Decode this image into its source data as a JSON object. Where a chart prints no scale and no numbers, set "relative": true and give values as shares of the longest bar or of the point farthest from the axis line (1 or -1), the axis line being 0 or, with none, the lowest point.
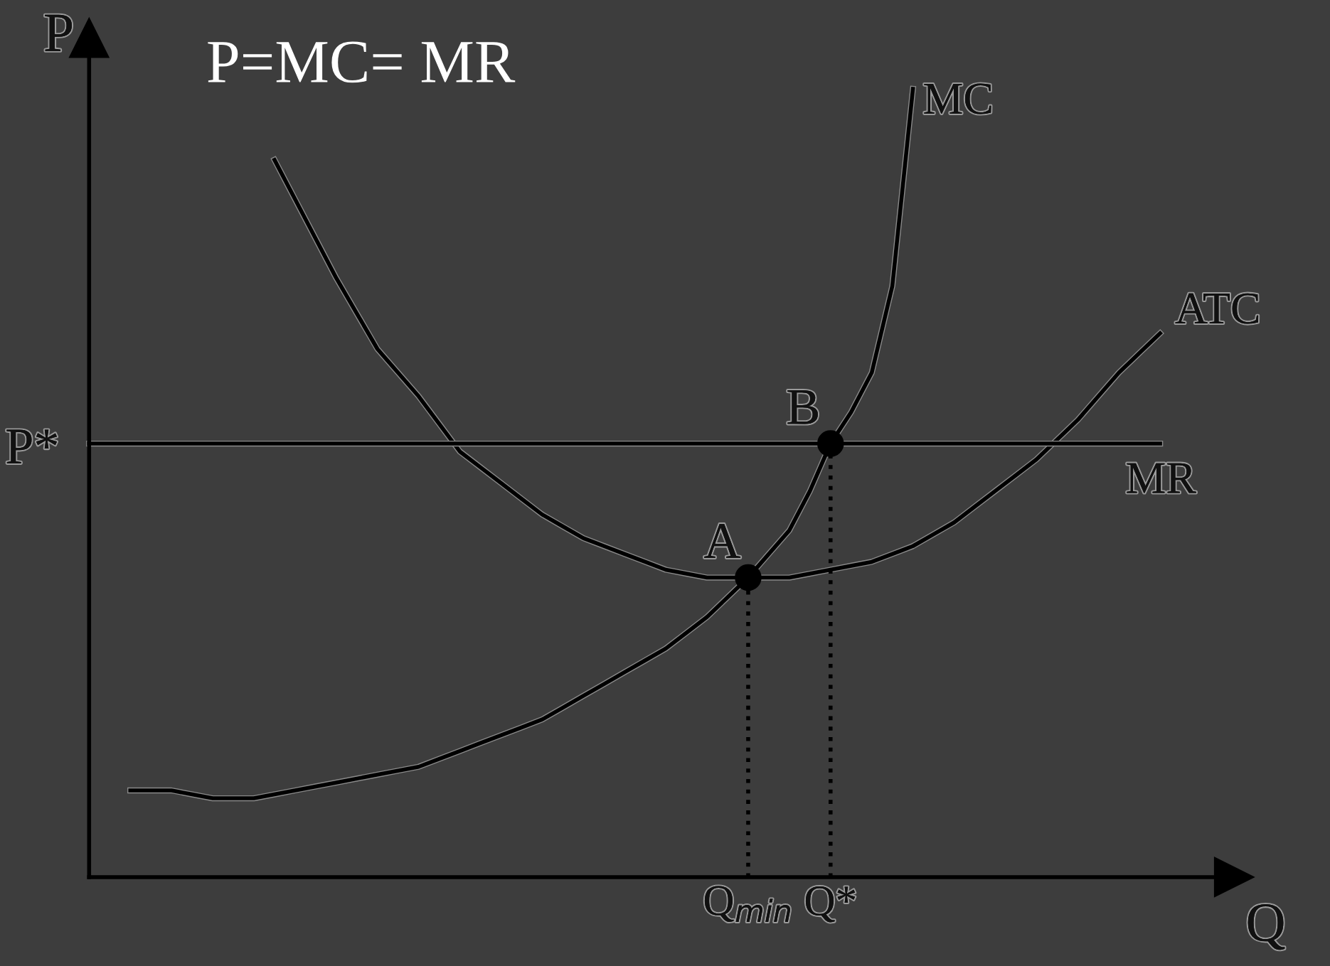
{
  "chart_data": {
    "type": "line",
    "relative": true,
    "title": "P=MC= MR",
    "xlabel": "Q",
    "ylabel": "P",
    "categories": [
      null,
      null,
      null,
      null,
      null,
      null,
      null,
      null,
      null,
      null,
      null,
      null,
      null,
      null,
      null,
      null,
      null,
      null,
      null,
      null,
      null,
      null,
      null,
      null,
      null,
      null,
      null,
      null,
      null,
      null,
      null,
      null,
      "Q$_{min}$",
      null,
      null,
      null,
      "Q*",
      null,
      null,
      null,
      null,
      null,
      null,
      null,
      null,
      null,
      null,
      null,
      null,
      null,
      null,
      null,
      null
    ],
    "series": [
      {
        "name": "MC",
        "color": "#000000",
        "values": [
          null,
          null,
          0.11,
          0.11,
          0.11,
          0.105,
          0.1,
          0.1,
          0.1,
          0.105,
          0.11,
          0.115,
          0.12,
          0.125,
          0.13,
          0.135,
          0.14,
          0.15,
          0.16,
          0.17,
          0.18,
          0.19,
          0.2,
          0.215,
          0.23,
          0.245,
          0.26,
          0.275,
          0.29,
          0.31,
          0.33,
          0.355,
          0.38,
          0.41,
          0.44,
          0.49,
          0.55,
          0.59,
          0.64,
          0.75,
          1.0,
          null,
          null,
          null,
          null,
          null,
          null,
          null,
          null,
          null,
          null,
          null,
          null
        ]
      },
      {
        "name": "ATC",
        "color": "#000000",
        "values": [
          null,
          null,
          null,
          null,
          null,
          null,
          null,
          null,
          null,
          0.91,
          0.86,
          0.81,
          0.76,
          0.715,
          0.67,
          0.64,
          0.61,
          0.575,
          0.54,
          0.52,
          0.5,
          0.48,
          0.46,
          0.445,
          0.43,
          0.42,
          0.41,
          0.4,
          0.39,
          0.385,
          0.38,
          0.38,
          0.38,
          0.38,
          0.38,
          0.385,
          0.39,
          0.395,
          0.4,
          0.41,
          0.42,
          0.435,
          0.45,
          0.47,
          0.49,
          0.51,
          0.53,
          0.555,
          0.58,
          0.61,
          0.64,
          0.665,
          0.69
        ]
      },
      {
        "name": "MR",
        "color": "#000000",
        "values": [
          0.55,
          0.55,
          0.55,
          0.55,
          0.55,
          0.55,
          0.55,
          0.55,
          0.55,
          0.55,
          0.55,
          0.55,
          0.55,
          0.55,
          0.55,
          0.55,
          0.55,
          0.55,
          0.55,
          0.55,
          0.55,
          0.55,
          0.55,
          0.55,
          0.55,
          0.55,
          0.55,
          0.55,
          0.55,
          0.55,
          0.55,
          0.55,
          0.55,
          0.55,
          0.55,
          0.55,
          0.55,
          0.55,
          0.55,
          0.55,
          0.55,
          0.55,
          0.55,
          0.55,
          0.55,
          0.55,
          0.55,
          0.55,
          0.55,
          0.55,
          0.55,
          0.55,
          0.55
        ]
      },
      {
        "type": "lollipop",
        "color": "#000000",
        "line_style": "dotted",
        "marker": "circle",
        "values": [
          null,
          null,
          null,
          null,
          null,
          null,
          null,
          null,
          null,
          null,
          null,
          null,
          null,
          null,
          null,
          null,
          null,
          null,
          null,
          null,
          null,
          null,
          null,
          null,
          null,
          null,
          null,
          null,
          null,
          null,
          null,
          null,
          0.38,
          null,
          null,
          null,
          0.55,
          null,
          null,
          null,
          null,
          null,
          null,
          null,
          null,
          null,
          null,
          null,
          null,
          null,
          null,
          null,
          null
        ]
      }
    ],
    "annotations": [
      "A",
      "B",
      "P*"
    ],
    "legend": false,
    "grid": false
  }
}
